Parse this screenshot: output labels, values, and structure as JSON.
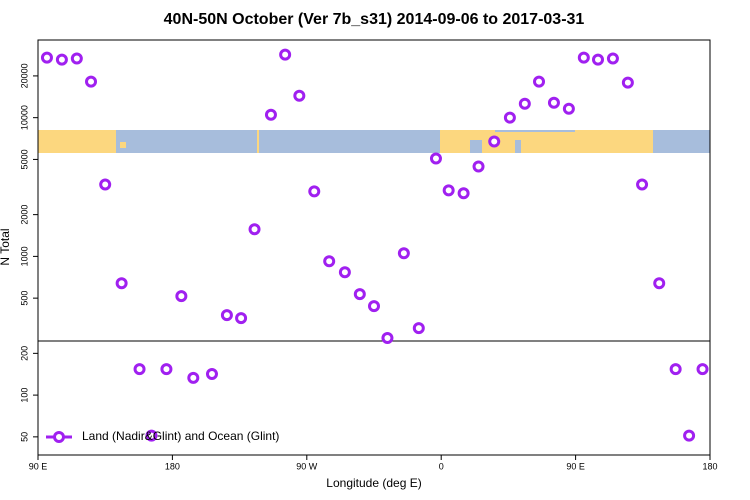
{
  "chart_data": {
    "type": "scatter",
    "title": "40N-50N October (Ver 7b_s31)   2014-09-06 to 2017-03-31",
    "xlabel": "Longitude (deg E)",
    "ylabel": "N Total",
    "log": true,
    "xlim": [
      90,
      540
    ],
    "ylim": [
      37,
      36300
    ],
    "xticks": [
      {
        "value": 90,
        "label": "90 E"
      },
      180,
      {
        "value": 270,
        "label": "90 W"
      },
      {
        "value": 360,
        "label": "0"
      },
      {
        "value": 450,
        "label": "90 E"
      },
      {
        "value": 540,
        "label": "180"
      }
    ],
    "yticks": [
      50,
      100,
      200,
      500,
      1000,
      2000,
      5000,
      10000,
      20000
    ],
    "legend": "bottom-left",
    "series": [
      {
        "name": "Land (Nadir&Glint) and Ocean (Glint)",
        "color": "#a020f0",
        "x": [
          96,
          106,
          116,
          125.5,
          135,
          146,
          158,
          166,
          176,
          186,
          194,
          206.5,
          216.5,
          226,
          235,
          246,
          255.5,
          265,
          275,
          285,
          295.5,
          305.5,
          315,
          324,
          335,
          345,
          356.5,
          365,
          375,
          385,
          395.5,
          406,
          416,
          425.5,
          435.5,
          445.5,
          455.5,
          465,
          475,
          485,
          494.5,
          506,
          517,
          526,
          535
        ],
        "values": [
          27100,
          26200,
          26700,
          18200,
          3300,
          640,
          154,
          51,
          154,
          517,
          133,
          142,
          377,
          359,
          1570,
          10500,
          28500,
          14400,
          2940,
          923,
          769,
          534,
          438,
          258,
          1054,
          304,
          5080,
          2990,
          2850,
          4450,
          6730,
          10000,
          12600,
          18200,
          12800,
          11600,
          27100,
          26200,
          26700,
          17900,
          3300,
          640,
          154,
          51,
          154
        ]
      }
    ]
  }
}
